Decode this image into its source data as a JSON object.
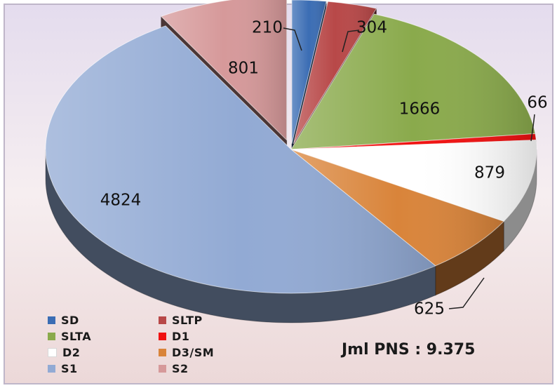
{
  "chart_data": {
    "type": "pie",
    "slices": [
      {
        "label": "SD",
        "value": 210,
        "color": "#3b6db4"
      },
      {
        "label": "SLTP",
        "value": 304,
        "color": "#b84848"
      },
      {
        "label": "SLTA",
        "value": 1666,
        "color": "#8aaa4c"
      },
      {
        "label": "D1",
        "value": 66,
        "color": "#f01010"
      },
      {
        "label": "D2",
        "value": 879,
        "color": "#ffffff"
      },
      {
        "label": "D3/SM",
        "value": 625,
        "color": "#d9843a"
      },
      {
        "label": "S1",
        "value": 4824,
        "color": "#92aad4"
      },
      {
        "label": "S2",
        "value": 801,
        "color": "#d6999a"
      }
    ],
    "legend_position": "bottom-left",
    "total_label": "Jml PNS : 9.375"
  }
}
